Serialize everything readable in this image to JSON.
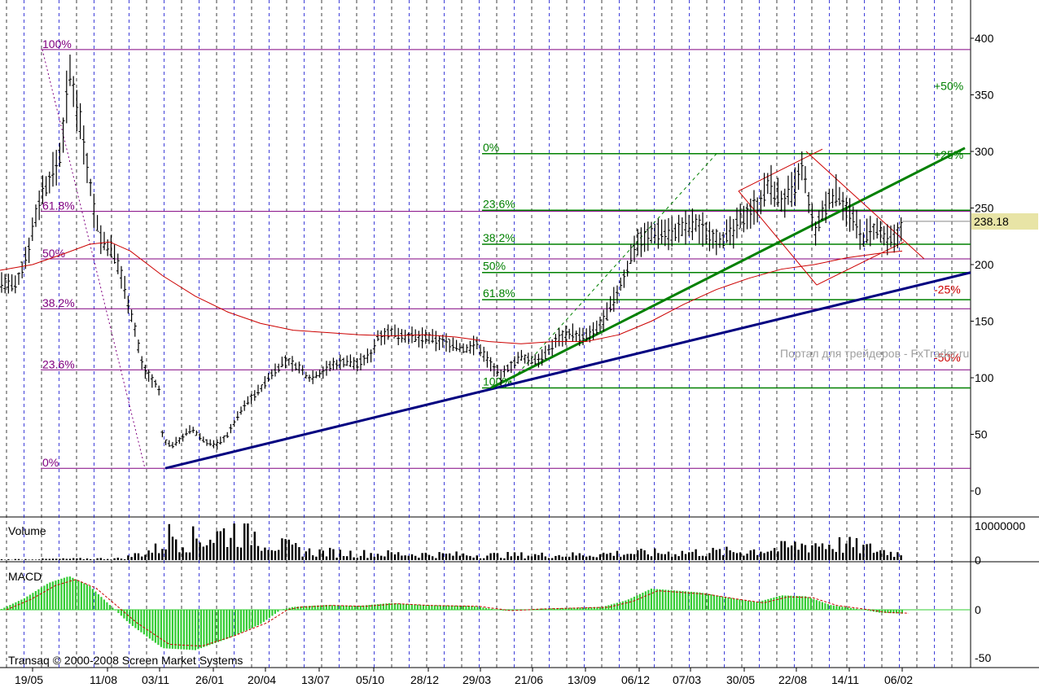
{
  "chart_data": {
    "type": "line",
    "panels": [
      "price",
      "Volume",
      "MACD"
    ],
    "price": {
      "ylim": [
        -20,
        420
      ],
      "y_ticks": [
        0,
        50,
        100,
        150,
        200,
        250,
        300,
        350,
        400
      ],
      "last_price": "238.18",
      "last_value": 238.18,
      "series": [
        {
          "role": "ohlc_bars",
          "color": "#000000"
        },
        {
          "role": "moving_average",
          "color": "#cc0000"
        }
      ],
      "fib_retracement_1": {
        "color": "#800080",
        "levels": [
          {
            "label": "100%",
            "value": 390
          },
          {
            "label": "61.8%",
            "value": 247
          },
          {
            "label": "50%",
            "value": 205
          },
          {
            "label": "38.2%",
            "value": 161
          },
          {
            "label": "23.6%",
            "value": 107
          },
          {
            "label": "0%",
            "value": 20
          }
        ]
      },
      "fib_retracement_2": {
        "color": "#008000",
        "levels": [
          {
            "label": "0%",
            "value": 298
          },
          {
            "label": "23.6%",
            "value": 248
          },
          {
            "label": "38.2%",
            "value": 218
          },
          {
            "label": "50%",
            "value": 193
          },
          {
            "label": "61.8%",
            "value": 169
          },
          {
            "label": "100%",
            "value": 91
          }
        ],
        "extensions": [
          {
            "label": "+50%",
            "value": 358,
            "color": "#008000"
          },
          {
            "label": "+25%",
            "value": 297,
            "color": "#008000"
          },
          {
            "label": "-25%",
            "value": 178,
            "color": "#cc0000"
          },
          {
            "label": "-50%",
            "value": 118,
            "color": "#cc0000"
          }
        ]
      }
    },
    "volume": {
      "title": "Volume",
      "y_ticks": [
        "10000000",
        "0"
      ]
    },
    "macd": {
      "title": "MACD",
      "y_ticks": [
        "0",
        "-50"
      ],
      "hist_color": "#33cc33"
    },
    "x_ticks": [
      "19/05",
      "11/08",
      "03/11",
      "26/01",
      "20/04",
      "13/07",
      "05/10",
      "28/12",
      "29/03",
      "21/06",
      "13/09",
      "06/12",
      "07/03",
      "30/05",
      "22/08",
      "14/11",
      "06/02"
    ],
    "watermark": "Портал для трейдеров - FxTrader.ru",
    "copyright": "Transaq © 2000-2008 Screen Market Systems"
  }
}
